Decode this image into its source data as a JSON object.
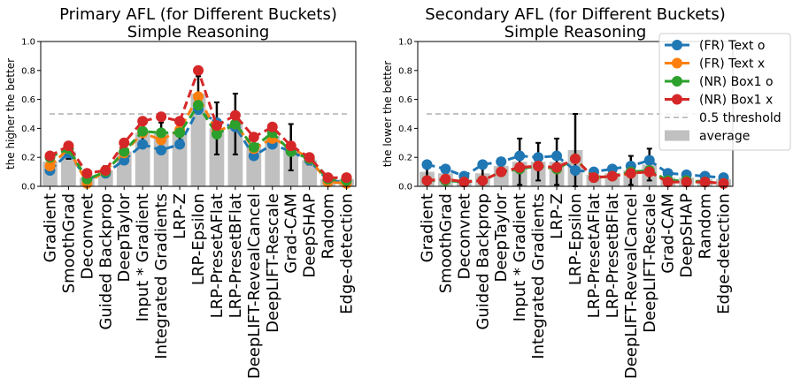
{
  "colors": {
    "fr_text_o": "#1f77b4",
    "fr_text_x": "#ff7f0e",
    "nr_box1_o": "#2ca02c",
    "nr_box1_x": "#d62728",
    "threshold": "#b0b0b0",
    "average": "#c0c0c0",
    "error_bar": "#000000"
  },
  "chart_data": [
    {
      "type": "bar",
      "title": "Primary AFL (for Different Buckets)",
      "subtitle": "Simple Reasoning",
      "xlabel": "",
      "ylabel": "the higher the better",
      "ylim": [
        0,
        1.0
      ],
      "yticks": [
        "0.0",
        "0.2",
        "0.4",
        "0.6",
        "0.8",
        "1.0"
      ],
      "grid": false,
      "categories": [
        "Gradient",
        "SmoothGrad",
        "Deconvnet",
        "Guided Backprop",
        "DeepTaylor",
        "Input * Gradient",
        "Integrated Gradients",
        "LRP-Z",
        "LRP-Epsilon",
        "LRP-PresetAFlat",
        "LRP-PresetBFlat",
        "DeepLIFT-RevealCancel",
        "DeepLIFT-Rescale",
        "Grad-CAM",
        "DeepSHAP",
        "Random",
        "Edge-detection"
      ],
      "average": [
        0.17,
        0.24,
        0.06,
        0.11,
        0.24,
        0.37,
        0.37,
        0.38,
        0.64,
        0.4,
        0.43,
        0.29,
        0.35,
        0.27,
        0.18,
        0.05,
        0.05
      ],
      "error": [
        0.05,
        0.05,
        0.03,
        0.03,
        0.06,
        0.08,
        0.07,
        0.08,
        0.12,
        0.18,
        0.21,
        0.07,
        0.06,
        0.16,
        0.03,
        0.02,
        0.02
      ],
      "threshold": 0.5,
      "series": [
        {
          "name": "(FR) Text o",
          "values": [
            0.11,
            0.23,
            0.05,
            0.09,
            0.18,
            0.29,
            0.25,
            0.29,
            0.53,
            0.44,
            0.41,
            0.21,
            0.29,
            0.24,
            0.18,
            0.04,
            0.03
          ]
        },
        {
          "name": "(FR) Text x",
          "values": [
            0.14,
            0.26,
            0.02,
            0.11,
            0.23,
            0.37,
            0.32,
            0.39,
            0.62,
            0.38,
            0.43,
            0.26,
            0.33,
            0.27,
            0.19,
            0.03,
            0.02
          ]
        },
        {
          "name": "(NR) Box1 o",
          "values": [
            0.2,
            0.26,
            0.05,
            0.1,
            0.24,
            0.38,
            0.37,
            0.37,
            0.56,
            0.36,
            0.43,
            0.27,
            0.37,
            0.24,
            0.19,
            0.05,
            0.04
          ]
        },
        {
          "name": "(NR) Box1 x",
          "values": [
            0.21,
            0.28,
            0.09,
            0.11,
            0.3,
            0.45,
            0.48,
            0.45,
            0.8,
            0.42,
            0.49,
            0.34,
            0.41,
            0.28,
            0.2,
            0.06,
            0.06
          ]
        }
      ]
    },
    {
      "type": "bar",
      "title": "Secondary AFL (for Different Buckets)",
      "subtitle": "Simple Reasoning",
      "xlabel": "",
      "ylabel": "the lower the better",
      "ylim": [
        0,
        1.0
      ],
      "yticks": [
        "0.0",
        "0.2",
        "0.4",
        "0.6",
        "0.8",
        "1.0"
      ],
      "grid": false,
      "categories": [
        "Gradient",
        "SmoothGrad",
        "Deconvnet",
        "Guided Backprop",
        "DeepTaylor",
        "Input * Gradient",
        "Integrated Gradients",
        "LRP-Z",
        "LRP-Epsilon",
        "LRP-PresetAFlat",
        "LRP-PresetBFlat",
        "DeepLIFT-RevealCancel",
        "DeepLIFT-Rescale",
        "Grad-CAM",
        "DeepSHAP",
        "Random",
        "Edge-detection"
      ],
      "average": [
        0.1,
        0.09,
        0.05,
        0.09,
        0.14,
        0.17,
        0.17,
        0.17,
        0.25,
        0.08,
        0.09,
        0.11,
        0.15,
        0.06,
        0.06,
        0.05,
        0.05
      ],
      "error": [
        0.05,
        0.05,
        0.02,
        0.04,
        0.04,
        0.16,
        0.13,
        0.16,
        0.25,
        0.03,
        0.03,
        0.1,
        0.11,
        0.05,
        0.02,
        0.01,
        0.01
      ],
      "threshold": 0.5,
      "series": [
        {
          "name": "(FR) Text o",
          "values": [
            0.15,
            0.12,
            0.07,
            0.15,
            0.17,
            0.21,
            0.2,
            0.21,
            0.11,
            0.1,
            0.12,
            0.14,
            0.18,
            0.09,
            0.08,
            0.07,
            0.06
          ]
        },
        {
          "name": "(FR) Text x",
          "values": [
            0.04,
            0.05,
            0.03,
            0.04,
            0.1,
            0.13,
            0.14,
            0.12,
            0.19,
            0.06,
            0.07,
            0.09,
            0.1,
            0.03,
            0.03,
            0.03,
            0.02
          ]
        },
        {
          "name": "(NR) Box1 o",
          "values": [
            0.04,
            0.04,
            0.03,
            0.04,
            0.1,
            0.12,
            0.14,
            0.12,
            0.19,
            0.06,
            0.07,
            0.1,
            0.11,
            0.04,
            0.04,
            0.03,
            0.02
          ]
        },
        {
          "name": "(NR) Box1 x",
          "values": [
            0.04,
            0.05,
            0.03,
            0.04,
            0.1,
            0.13,
            0.14,
            0.13,
            0.19,
            0.06,
            0.07,
            0.09,
            0.1,
            0.03,
            0.03,
            0.03,
            0.02
          ]
        }
      ]
    }
  ],
  "legend": {
    "position": "upper-right",
    "entries": [
      "(FR) Text o",
      "(FR) Text x",
      "(NR) Box1 o",
      "(NR) Box1 x",
      "0.5 threshold",
      "average"
    ]
  }
}
